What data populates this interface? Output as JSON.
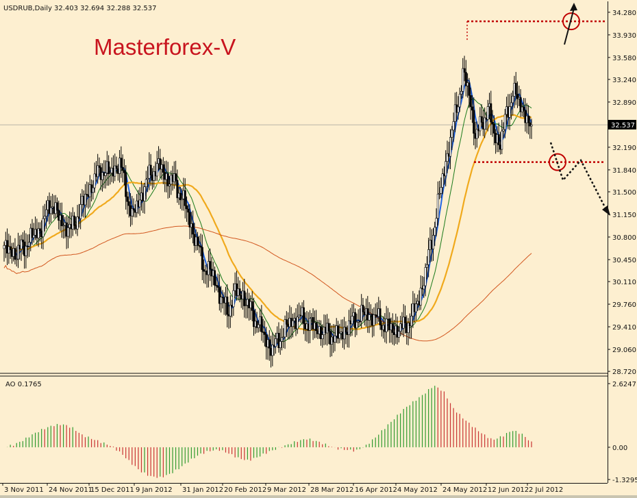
{
  "header": {
    "symbol": "USDRUB,Daily",
    "ohlc": "32.403 32.694 32.288 32.537"
  },
  "watermark": "Masterforex-V",
  "current_price_label": "32.537",
  "colors": {
    "background": "#fdefd0",
    "bull_candle": "#ffffff",
    "bear_candle": "#000000",
    "ma_fast": "#1e64e6",
    "ma_green": "#1a7a1a",
    "ma_orange": "#f0a91c",
    "ma_slow": "#d2561e",
    "ao_up": "#2e9a2e",
    "ao_down": "#c83232",
    "annotation": "#c00000"
  },
  "chart_data": [
    {
      "type": "candlestick",
      "title": "USDRUB,Daily",
      "y_ticks": [
        "34.280",
        "33.930",
        "33.580",
        "33.240",
        "32.890",
        "32.537",
        "32.190",
        "31.840",
        "31.500",
        "31.150",
        "30.800",
        "30.450",
        "30.110",
        "29.760",
        "29.410",
        "29.060",
        "28.720"
      ],
      "ylim": [
        28.7,
        34.3
      ],
      "x_ticks": [
        "3 Nov 2011",
        "24 Nov 2011",
        "15 Dec 2011",
        "9 Jan 2012",
        "31 Jan 2012",
        "20 Feb 2012",
        "9 Mar 2012",
        "28 Mar 2012",
        "16 Apr 2012",
        "4 May 2012",
        "24 May 2012",
        "12 Jun 2012",
        "2 Jul 2012"
      ],
      "close_path": [
        [
          0,
          30.62
        ],
        [
          8,
          30.55
        ],
        [
          16,
          30.75
        ],
        [
          24,
          30.95
        ],
        [
          30,
          31.35
        ],
        [
          36,
          31.05
        ],
        [
          43,
          30.9
        ],
        [
          50,
          31.3
        ],
        [
          56,
          31.6
        ],
        [
          62,
          31.85
        ],
        [
          68,
          31.78
        ],
        [
          74,
          31.95
        ],
        [
          78,
          31.55
        ],
        [
          82,
          31.1
        ],
        [
          88,
          31.45
        ],
        [
          94,
          31.8
        ],
        [
          100,
          31.9
        ],
        [
          104,
          31.72
        ],
        [
          110,
          31.62
        ],
        [
          116,
          31.3
        ],
        [
          122,
          30.8
        ],
        [
          128,
          30.35
        ],
        [
          134,
          30.2
        ],
        [
          139,
          29.85
        ],
        [
          143,
          29.65
        ],
        [
          148,
          29.95
        ],
        [
          153,
          29.9
        ],
        [
          158,
          29.65
        ],
        [
          163,
          29.45
        ],
        [
          168,
          29.2
        ],
        [
          172,
          29.05
        ],
        [
          178,
          29.3
        ],
        [
          184,
          29.5
        ],
        [
          190,
          29.55
        ],
        [
          196,
          29.45
        ],
        [
          202,
          29.35
        ],
        [
          208,
          29.3
        ],
        [
          214,
          29.25
        ],
        [
          220,
          29.4
        ],
        [
          226,
          29.55
        ],
        [
          232,
          29.62
        ],
        [
          238,
          29.55
        ],
        [
          244,
          29.45
        ],
        [
          250,
          29.35
        ],
        [
          256,
          29.4
        ],
        [
          262,
          29.6
        ],
        [
          266,
          29.85
        ],
        [
          270,
          30.25
        ],
        [
          274,
          30.75
        ],
        [
          278,
          31.3
        ],
        [
          282,
          31.85
        ],
        [
          286,
          32.3
        ],
        [
          290,
          32.8
        ],
        [
          294,
          33.3
        ],
        [
          298,
          33.05
        ],
        [
          302,
          32.35
        ],
        [
          306,
          32.55
        ],
        [
          310,
          32.8
        ],
        [
          314,
          32.4
        ],
        [
          318,
          32.25
        ],
        [
          322,
          32.7
        ],
        [
          326,
          33.05
        ],
        [
          330,
          32.9
        ],
        [
          334,
          32.7
        ],
        [
          338,
          32.4
        ]
      ],
      "series": [
        {
          "name": "",
          "kind": "ma",
          "color_key": "ma_fast"
        },
        {
          "name": "",
          "kind": "ma",
          "color_key": "ma_green"
        },
        {
          "name": "",
          "kind": "ma",
          "color_key": "ma_orange"
        },
        {
          "name": "",
          "kind": "ma",
          "color_key": "ma_slow"
        }
      ],
      "levels": [
        34.14,
        31.96
      ],
      "grid": false
    },
    {
      "type": "bar",
      "title": "AO 0.1765",
      "y_ticks": [
        "2.6247",
        "0.00",
        "-1.3295"
      ],
      "ylim": [
        -1.3295,
        2.6247
      ],
      "values": [
        0.0,
        0.1,
        0.3,
        0.55,
        0.75,
        0.9,
        0.95,
        0.8,
        0.5,
        0.35,
        0.2,
        0.05,
        -0.25,
        -0.65,
        -1.0,
        -1.2,
        -1.25,
        -1.1,
        -0.85,
        -0.55,
        -0.3,
        -0.15,
        -0.1,
        -0.25,
        -0.45,
        -0.55,
        -0.4,
        -0.2,
        -0.05,
        0.1,
        0.25,
        0.35,
        0.25,
        0.1,
        -0.05,
        -0.1,
        -0.15,
        0.05,
        0.4,
        0.8,
        1.2,
        1.6,
        1.9,
        2.2,
        2.55,
        2.3,
        1.6,
        1.2,
        0.85,
        0.55,
        0.3,
        0.45,
        0.7,
        0.55,
        0.2
      ]
    }
  ]
}
